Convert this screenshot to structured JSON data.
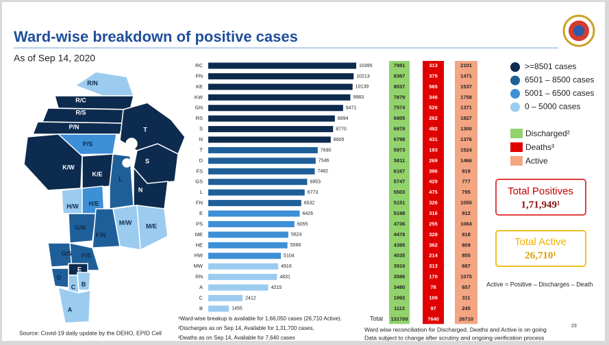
{
  "chart_data": {
    "type": "bar",
    "orientation": "horizontal",
    "title": "Ward-wise breakdown of positive cases",
    "subtitle": "As of Sep 14, 2020",
    "categories": [
      "RC",
      "PN",
      "KE",
      "KW",
      "GN",
      "RS",
      "S",
      "N",
      "T",
      "D",
      "FS",
      "GS",
      "L",
      "FN",
      "E",
      "PS",
      "ME",
      "HE",
      "HW",
      "MW",
      "RN",
      "A",
      "C",
      "B"
    ],
    "values": [
      10395,
      10213,
      10139,
      9983,
      9471,
      8894,
      8770,
      8605,
      7690,
      7546,
      7482,
      6953,
      6773,
      6532,
      6426,
      6055,
      5624,
      5566,
      5104,
      4916,
      4831,
      4215,
      2412,
      1455
    ],
    "colors": [
      "#0d2b4e",
      "#0d2b4e",
      "#0d2b4e",
      "#0d2b4e",
      "#0d2b4e",
      "#0d2b4e",
      "#0d2b4e",
      "#0d2b4e",
      "#1f5f99",
      "#1f5f99",
      "#1f5f99",
      "#1f5f99",
      "#1f5f99",
      "#1f5f99",
      "#3d8fd6",
      "#3d8fd6",
      "#3d8fd6",
      "#3d8fd6",
      "#3d8fd6",
      "#9ccbf0",
      "#9ccbf0",
      "#9ccbf0",
      "#9ccbf0",
      "#9ccbf0"
    ],
    "legend": [
      {
        "label": ">=8501 cases",
        "color": "#0d2b4e"
      },
      {
        "label": "6501 – 8500 cases",
        "color": "#1f5f99"
      },
      {
        "label": "5001 – 6500 cases",
        "color": "#3d8fd6"
      },
      {
        "label": "0 – 5000 cases",
        "color": "#9ccbf0"
      }
    ]
  },
  "table": {
    "columns": [
      {
        "name": "Discharged²",
        "color": "#92d36e"
      },
      {
        "name": "Deaths³",
        "color": "#e00000"
      },
      {
        "name": "Active",
        "color": "#f4a582"
      }
    ],
    "rows": [
      [
        7981,
        313,
        2101
      ],
      [
        8367,
        375,
        1471
      ],
      [
        8037,
        565,
        1537
      ],
      [
        7879,
        346,
        1758
      ],
      [
        7574,
        526,
        1371
      ],
      [
        6805,
        262,
        1827
      ],
      [
        6978,
        492,
        1300
      ],
      [
        6798,
        431,
        1376
      ],
      [
        5973,
        193,
        1524
      ],
      [
        5811,
        269,
        1466
      ],
      [
        6167,
        396,
        919
      ],
      [
        5747,
        429,
        777
      ],
      [
        5503,
        475,
        795
      ],
      [
        5151,
        326,
        1055
      ],
      [
        5198,
        316,
        912
      ],
      [
        4736,
        255,
        1064
      ],
      [
        4478,
        328,
        818
      ],
      [
        4395,
        362,
        809
      ],
      [
        4035,
        214,
        855
      ],
      [
        3916,
        313,
        687
      ],
      [
        3586,
        170,
        1075
      ],
      [
        3480,
        78,
        657
      ],
      [
        1992,
        109,
        311
      ],
      [
        1113,
        97,
        245
      ]
    ],
    "total_label": "Total",
    "totals": [
      131700,
      7640,
      26710
    ]
  },
  "summary": {
    "positives_label": "Total Positives",
    "positives": "1,71,949¹",
    "active_label": "Total Active",
    "active": "26,710¹",
    "formula": "Active = Positive – Discharges – Death"
  },
  "map": {
    "labels": [
      "R/N",
      "R/C",
      "R/S",
      "P/N",
      "P/S",
      "T",
      "K/W",
      "K/E",
      "S",
      "H/W",
      "H/E",
      "L",
      "N",
      "G/N",
      "F/N",
      "M/W",
      "M/E",
      "G/S",
      "F/S",
      "E",
      "D",
      "C",
      "B",
      "A"
    ]
  },
  "footnotes": [
    "¹Ward-wise breakup is available for 1,66,050 cases (26,710 Active).",
    "²Discharges as on Sep 14, Available for 1,31,700  cases,",
    "³Deaths as on Sep 14, Available for 7,640 cases"
  ],
  "note": {
    "line1": "Ward wise reconciliation for Discharged, Deaths and Active is on going",
    "superscript": "23",
    "line2": "Data subject to change after scrutiny and ongoing verification process"
  },
  "source": "Source: Covid-19 daily update by the DEHO, EPID Cell"
}
